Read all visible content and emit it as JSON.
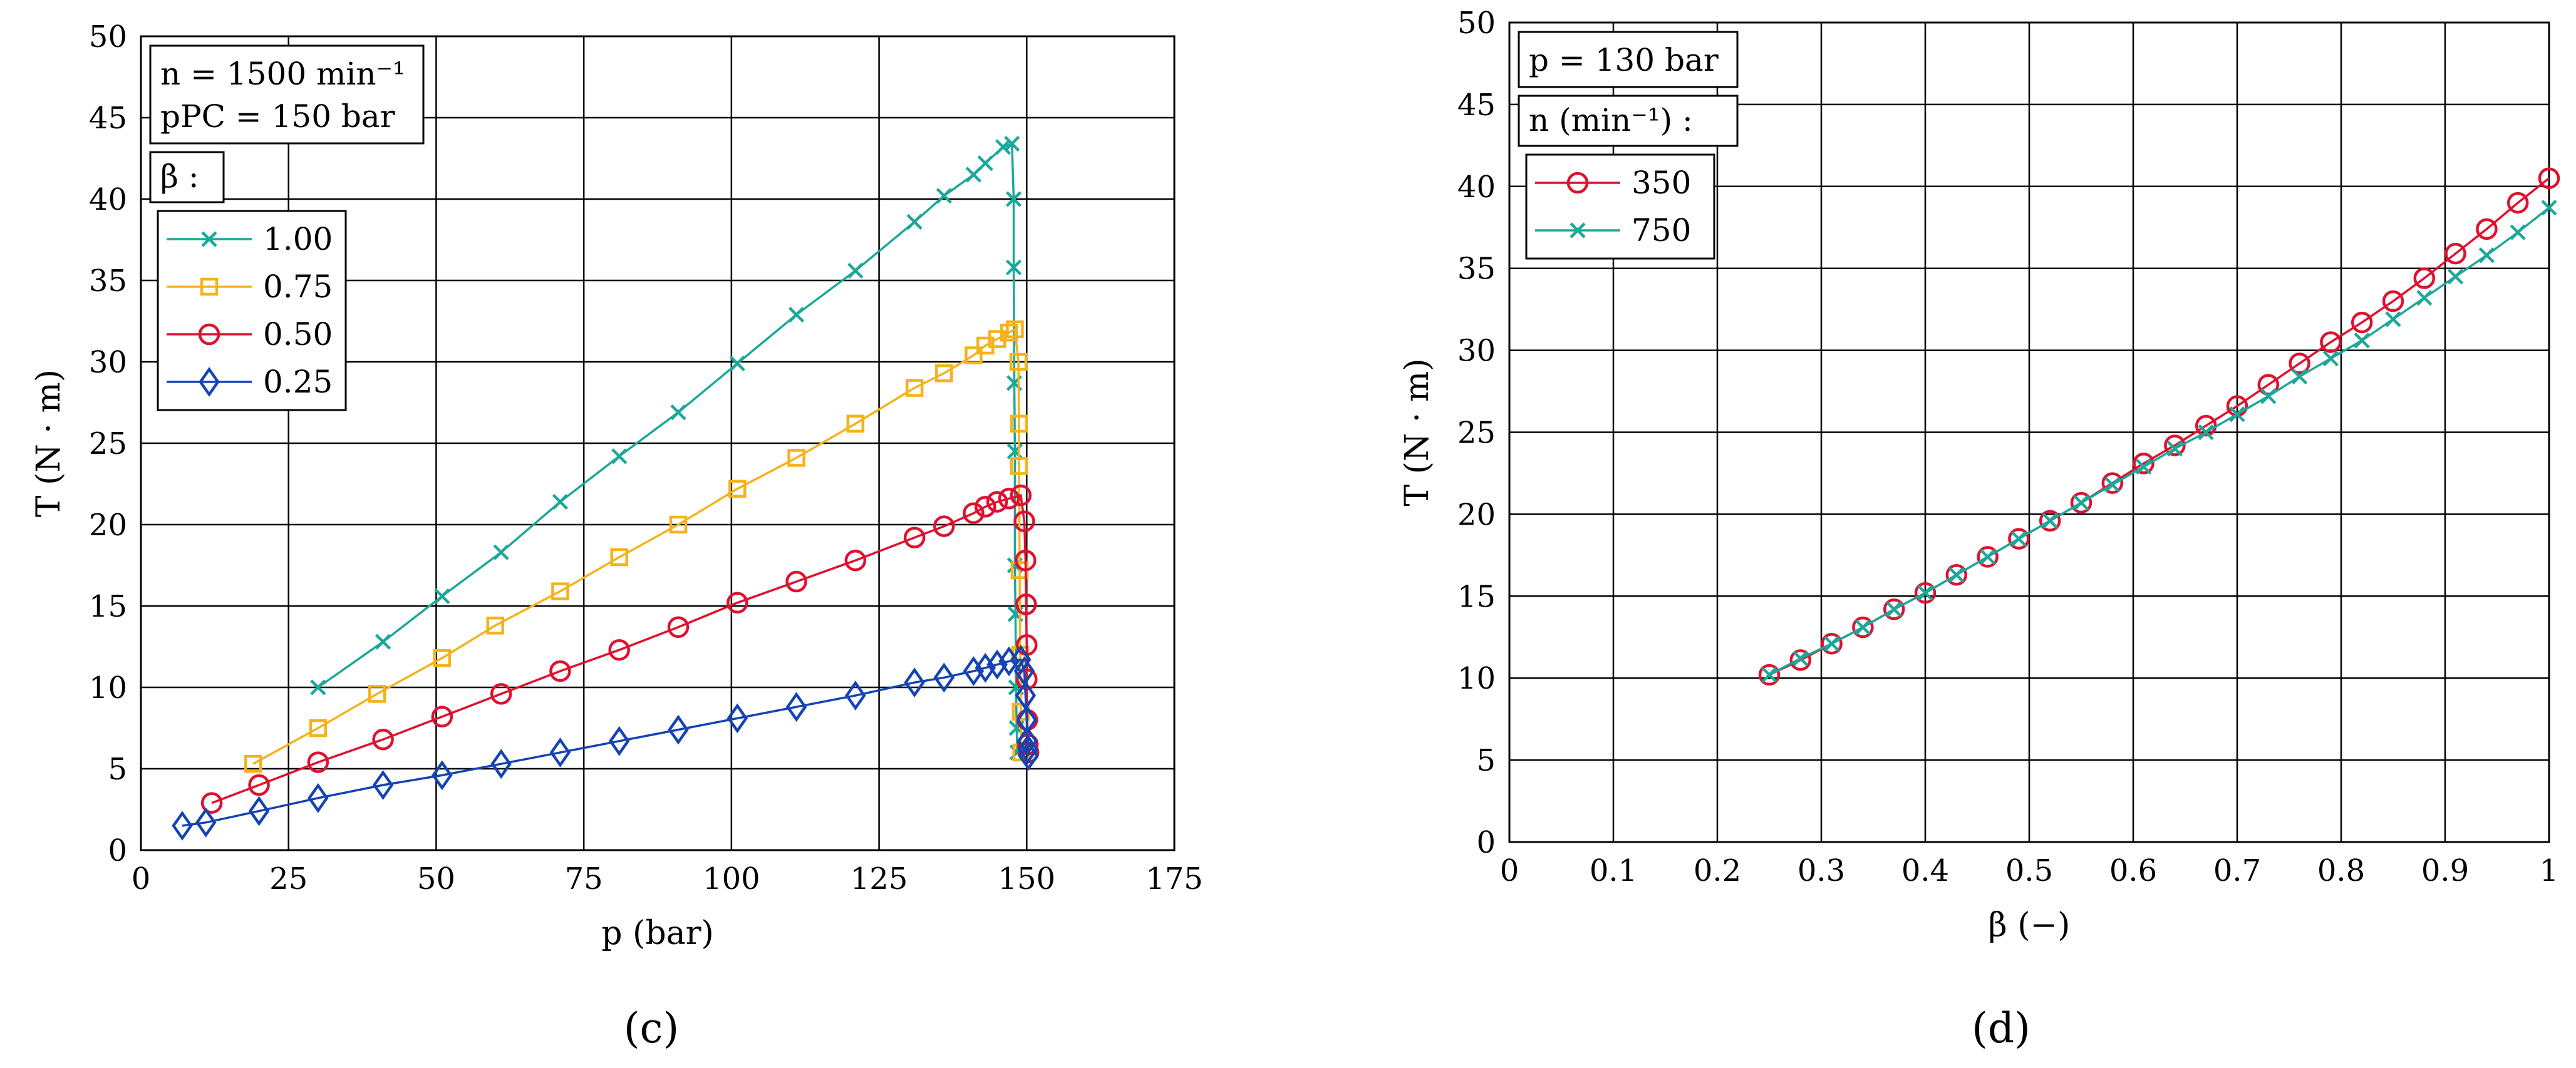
{
  "chart_data": [
    {
      "type": "line",
      "panel_label": "(c)",
      "xlabel": "p (bar)",
      "ylabel": "T (N · m)",
      "xlim": [
        0,
        175
      ],
      "ylim": [
        0,
        50
      ],
      "grid": true,
      "xticks": [
        0,
        25,
        50,
        75,
        100,
        125,
        150,
        175
      ],
      "yticks": [
        0,
        5,
        10,
        15,
        20,
        25,
        30,
        35,
        40,
        45,
        50
      ],
      "info_box": [
        "n = 1500 min⁻¹",
        "pPC = 150 bar"
      ],
      "legend_title": "β :",
      "legend_position": "top-left",
      "series": [
        {
          "name": "1.00",
          "color": "#1aa89a",
          "marker": "x",
          "x": [
            30,
            41,
            51,
            61,
            71,
            81,
            91,
            101,
            111,
            121,
            131,
            136,
            141,
            143,
            146,
            147.5,
            147.8,
            147.8,
            147.9,
            148.0,
            148.0,
            148.1,
            148.2,
            148.3,
            148.4
          ],
          "y": [
            10.0,
            12.8,
            15.6,
            18.3,
            21.4,
            24.2,
            26.9,
            29.9,
            32.9,
            35.6,
            38.6,
            40.2,
            41.5,
            42.2,
            43.2,
            43.4,
            40.0,
            35.8,
            28.7,
            24.5,
            17.5,
            14.5,
            10.0,
            7.5,
            6.0
          ]
        },
        {
          "name": "0.75",
          "color": "#f5b21a",
          "marker": "square",
          "x": [
            19,
            30,
            40,
            51,
            60,
            71,
            81,
            91,
            101,
            111,
            121,
            131,
            136,
            141,
            143,
            145,
            147,
            148,
            148.6,
            148.7,
            148.7,
            148.8,
            148.9,
            149.0,
            149.1
          ],
          "y": [
            5.3,
            7.5,
            9.6,
            11.8,
            13.8,
            15.9,
            18.0,
            20.0,
            22.2,
            24.1,
            26.2,
            28.4,
            29.3,
            30.4,
            31.0,
            31.4,
            31.8,
            32.0,
            30.0,
            26.2,
            23.6,
            17.2,
            12.0,
            8.5,
            6.0
          ]
        },
        {
          "name": "0.50",
          "color": "#e0102e",
          "marker": "circle",
          "x": [
            12,
            20,
            30,
            41,
            51,
            61,
            71,
            81,
            91,
            101,
            111,
            121,
            131,
            136,
            141,
            143,
            145,
            147,
            149,
            149.6,
            149.8,
            149.9,
            150.0,
            150.0,
            150.1,
            150.2,
            150.3
          ],
          "y": [
            2.9,
            4.0,
            5.4,
            6.8,
            8.2,
            9.6,
            11.0,
            12.3,
            13.7,
            15.2,
            16.5,
            17.8,
            19.2,
            19.9,
            20.7,
            21.1,
            21.4,
            21.6,
            21.8,
            20.2,
            17.8,
            15.1,
            12.6,
            10.5,
            8.0,
            6.5,
            6.0
          ]
        },
        {
          "name": "0.25",
          "color": "#1444b4",
          "marker": "diamond",
          "x": [
            7,
            11,
            20,
            30,
            41,
            51,
            61,
            71,
            81,
            91,
            101,
            111,
            121,
            131,
            136,
            141,
            143,
            145,
            147,
            149,
            149.6,
            149.8,
            150.0,
            150.1,
            150.2,
            150.3
          ],
          "y": [
            1.5,
            1.7,
            2.4,
            3.2,
            4.0,
            4.6,
            5.3,
            6.0,
            6.7,
            7.4,
            8.1,
            8.8,
            9.5,
            10.3,
            10.6,
            11.0,
            11.2,
            11.4,
            11.6,
            11.7,
            11.0,
            9.5,
            8.0,
            6.7,
            6.2,
            5.8
          ]
        }
      ]
    },
    {
      "type": "line",
      "panel_label": "(d)",
      "xlabel": "β (−)",
      "ylabel": "T (N · m)",
      "xlim": [
        0,
        1
      ],
      "ylim": [
        0,
        50
      ],
      "grid": true,
      "xticks": [
        0,
        0.1,
        0.2,
        0.3,
        0.4,
        0.5,
        0.6,
        0.7,
        0.8,
        0.9,
        1
      ],
      "yticks": [
        0,
        5,
        10,
        15,
        20,
        25,
        30,
        35,
        40,
        45,
        50
      ],
      "info_box": [
        "p = 130 bar"
      ],
      "legend_title": "n (min⁻¹) :",
      "legend_position": "top-left",
      "series": [
        {
          "name": "350",
          "color": "#e0102e",
          "marker": "circle",
          "x": [
            0.25,
            0.28,
            0.31,
            0.34,
            0.37,
            0.4,
            0.43,
            0.46,
            0.49,
            0.52,
            0.55,
            0.58,
            0.61,
            0.64,
            0.67,
            0.7,
            0.73,
            0.76,
            0.79,
            0.82,
            0.85,
            0.88,
            0.91,
            0.94,
            0.97,
            1.0
          ],
          "y": [
            10.2,
            11.1,
            12.1,
            13.1,
            14.2,
            15.2,
            16.3,
            17.4,
            18.5,
            19.6,
            20.7,
            21.9,
            23.1,
            24.2,
            25.4,
            26.6,
            27.9,
            29.2,
            30.5,
            31.7,
            33.0,
            34.4,
            35.9,
            37.4,
            39.0,
            40.5
          ]
        },
        {
          "name": "750",
          "color": "#1aa89a",
          "marker": "x",
          "x": [
            0.25,
            0.28,
            0.31,
            0.34,
            0.37,
            0.4,
            0.43,
            0.46,
            0.49,
            0.52,
            0.55,
            0.58,
            0.61,
            0.64,
            0.67,
            0.7,
            0.73,
            0.76,
            0.79,
            0.82,
            0.85,
            0.88,
            0.91,
            0.94,
            0.97,
            1.0
          ],
          "y": [
            10.2,
            11.2,
            12.1,
            13.1,
            14.2,
            15.2,
            16.3,
            17.4,
            18.5,
            19.6,
            20.7,
            21.8,
            22.9,
            24.0,
            25.0,
            26.1,
            27.2,
            28.4,
            29.5,
            30.6,
            31.9,
            33.2,
            34.5,
            35.8,
            37.2,
            38.7
          ]
        }
      ]
    }
  ]
}
